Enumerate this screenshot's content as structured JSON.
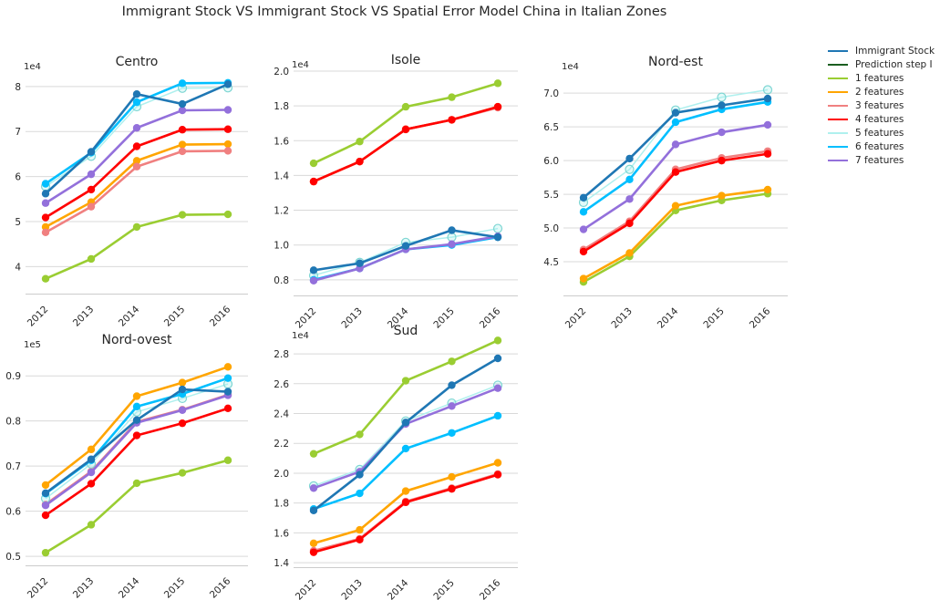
{
  "title": "Immigrant Stock VS Immigrant Stock VS Spatial Error Model China in Italian Zones",
  "legend": [
    {
      "name": "Immigrant Stock",
      "color": "#1f77b4"
    },
    {
      "name": "Prediction step I",
      "color": "#1b5e20"
    },
    {
      "name": "1 features",
      "color": "#9acd32"
    },
    {
      "name": "2 features",
      "color": "#ffa500"
    },
    {
      "name": "3 features",
      "color": "#f08080"
    },
    {
      "name": "4 features",
      "color": "#ff0000"
    },
    {
      "name": "5 features",
      "color": "#aff0ee"
    },
    {
      "name": "6 features",
      "color": "#00bfff"
    },
    {
      "name": "7 features",
      "color": "#9370db"
    }
  ],
  "chart_data": [
    {
      "type": "line",
      "title": "Centro",
      "exponent": "1e4",
      "x": [
        "2012",
        "2013",
        "2014",
        "2015",
        "2016"
      ],
      "ylim": [
        3.4,
        8.3
      ],
      "yticks": [
        "4",
        "5",
        "6",
        "7",
        "8"
      ],
      "series": [
        {
          "name": "Immigrant Stock",
          "values": [
            5.62,
            6.55,
            7.83,
            7.61,
            8.05
          ]
        },
        {
          "name": "1 features",
          "values": [
            3.73,
            4.17,
            4.88,
            5.15,
            5.16
          ]
        },
        {
          "name": "2 features",
          "values": [
            4.88,
            5.43,
            6.35,
            6.71,
            6.72
          ]
        },
        {
          "name": "3 features",
          "values": [
            4.76,
            5.33,
            6.22,
            6.56,
            6.57
          ]
        },
        {
          "name": "4 features",
          "values": [
            5.09,
            5.71,
            6.67,
            7.04,
            7.05
          ]
        },
        {
          "name": "5 features",
          "values": [
            5.78,
            6.45,
            7.55,
            7.96,
            7.97
          ]
        },
        {
          "name": "6 features",
          "values": [
            5.84,
            6.53,
            7.65,
            8.07,
            8.08
          ]
        },
        {
          "name": "7 features",
          "values": [
            5.41,
            6.05,
            7.08,
            7.47,
            7.48
          ]
        }
      ]
    },
    {
      "type": "line",
      "title": "Isole",
      "exponent": "1e4",
      "x": [
        "2012",
        "2013",
        "2014",
        "2015",
        "2016"
      ],
      "ylim": [
        0.71,
        2.0
      ],
      "yticks": [
        "0.8",
        "1.0",
        "1.2",
        "1.4",
        "1.6",
        "1.8",
        "2.0"
      ],
      "series": [
        {
          "name": "Immigrant Stock",
          "values": [
            0.855,
            0.895,
            0.995,
            1.085,
            1.045
          ]
        },
        {
          "name": "1 features",
          "values": [
            1.47,
            1.595,
            1.795,
            1.85,
            1.93
          ]
        },
        {
          "name": "2 features",
          "values": [
            1.365,
            1.48,
            1.665,
            1.72,
            1.795
          ]
        },
        {
          "name": "3 features",
          "values": [
            1.365,
            1.48,
            1.665,
            1.72,
            1.79
          ]
        },
        {
          "name": "4 features",
          "values": [
            1.365,
            1.48,
            1.665,
            1.72,
            1.795
          ]
        },
        {
          "name": "5 features",
          "values": [
            0.825,
            0.9,
            1.015,
            1.045,
            1.095
          ]
        },
        {
          "name": "6 features",
          "values": [
            0.8,
            0.865,
            0.975,
            1.0,
            1.045
          ]
        },
        {
          "name": "7 features",
          "values": [
            0.795,
            0.865,
            0.975,
            1.005,
            1.05
          ]
        }
      ]
    },
    {
      "type": "line",
      "title": "Nord-est",
      "exponent": "1e4",
      "x": [
        "2012",
        "2013",
        "2014",
        "2015",
        "2016"
      ],
      "ylim": [
        4.0,
        7.3
      ],
      "yticks": [
        "4.5",
        "5.0",
        "5.5",
        "6.0",
        "6.5",
        "7.0"
      ],
      "series": [
        {
          "name": "Immigrant Stock",
          "values": [
            5.45,
            6.03,
            6.71,
            6.82,
            6.92
          ]
        },
        {
          "name": "1 features",
          "values": [
            4.2,
            4.58,
            5.26,
            5.41,
            5.51
          ]
        },
        {
          "name": "2 features",
          "values": [
            4.25,
            4.63,
            5.33,
            5.48,
            5.57
          ]
        },
        {
          "name": "3 features",
          "values": [
            4.68,
            5.1,
            5.87,
            6.04,
            6.14
          ]
        },
        {
          "name": "4 features",
          "values": [
            4.65,
            5.07,
            5.83,
            6.0,
            6.1
          ]
        },
        {
          "name": "5 features",
          "values": [
            5.38,
            5.87,
            6.75,
            6.94,
            7.05
          ]
        },
        {
          "name": "6 features",
          "values": [
            5.24,
            5.72,
            6.57,
            6.76,
            6.87
          ]
        },
        {
          "name": "7 features",
          "values": [
            4.98,
            5.43,
            6.24,
            6.42,
            6.53
          ]
        }
      ]
    },
    {
      "type": "line",
      "title": "Nord-ovest",
      "exponent": "1e5",
      "x": [
        "2012",
        "2013",
        "2014",
        "2015",
        "2016"
      ],
      "ylim": [
        0.48,
        0.955
      ],
      "yticks": [
        "0.5",
        "0.6",
        "0.7",
        "0.8",
        "0.9"
      ],
      "series": [
        {
          "name": "Immigrant Stock",
          "values": [
            0.64,
            0.715,
            0.802,
            0.87,
            0.865
          ]
        },
        {
          "name": "1 features",
          "values": [
            0.508,
            0.57,
            0.662,
            0.685,
            0.713
          ]
        },
        {
          "name": "2 features",
          "values": [
            0.658,
            0.737,
            0.855,
            0.885,
            0.92
          ]
        },
        {
          "name": "3 features",
          "values": [
            0.615,
            0.688,
            0.798,
            0.825,
            0.858
          ]
        },
        {
          "name": "4 features",
          "values": [
            0.591,
            0.661,
            0.768,
            0.795,
            0.828
          ]
        },
        {
          "name": "5 features",
          "values": [
            0.628,
            0.705,
            0.82,
            0.85,
            0.882
          ]
        },
        {
          "name": "6 features",
          "values": [
            0.639,
            0.713,
            0.832,
            0.86,
            0.895
          ]
        },
        {
          "name": "7 features",
          "values": [
            0.613,
            0.686,
            0.796,
            0.824,
            0.857
          ]
        }
      ]
    },
    {
      "type": "line",
      "title": "Sud",
      "exponent": "1e4",
      "x": [
        "2012",
        "2013",
        "2014",
        "2015",
        "2016"
      ],
      "ylim": [
        1.37,
        2.88
      ],
      "yticks": [
        "1.4",
        "1.6",
        "1.8",
        "2.0",
        "2.2",
        "2.4",
        "2.6",
        "2.8"
      ],
      "series": [
        {
          "name": "Immigrant Stock",
          "values": [
            1.75,
            1.99,
            2.34,
            2.59,
            2.77
          ]
        },
        {
          "name": "1 features",
          "values": [
            2.13,
            2.26,
            2.62,
            2.75,
            2.89
          ]
        },
        {
          "name": "2 features",
          "values": [
            1.53,
            1.62,
            1.88,
            1.975,
            2.07
          ]
        },
        {
          "name": "3 features",
          "values": [
            1.48,
            1.56,
            1.81,
            1.9,
            1.995
          ]
        },
        {
          "name": "4 features",
          "values": [
            1.47,
            1.555,
            1.805,
            1.895,
            1.99
          ]
        },
        {
          "name": "5 features",
          "values": [
            1.915,
            2.025,
            2.35,
            2.47,
            2.59
          ]
        },
        {
          "name": "6 features",
          "values": [
            1.76,
            1.865,
            2.165,
            2.27,
            2.385
          ]
        },
        {
          "name": "7 features",
          "values": [
            1.9,
            2.01,
            2.33,
            2.45,
            2.57
          ]
        }
      ]
    }
  ]
}
